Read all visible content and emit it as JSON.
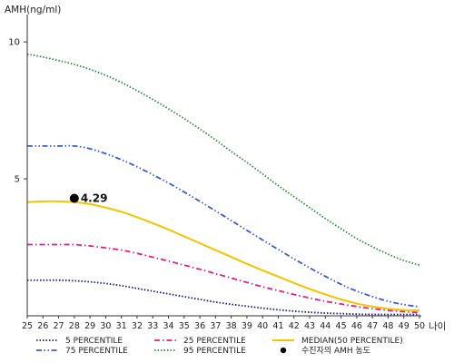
{
  "chart_data": {
    "type": "line",
    "ylabel": "AMH(ng/ml)",
    "xlabel": "나이",
    "x": [
      25,
      26,
      27,
      28,
      29,
      30,
      31,
      32,
      33,
      34,
      35,
      36,
      37,
      38,
      39,
      40,
      41,
      42,
      43,
      44,
      45,
      46,
      47,
      48,
      49,
      50
    ],
    "xlim": [
      25,
      50
    ],
    "ylim": [
      0,
      11
    ],
    "yticks": [
      5,
      10
    ],
    "grid": false,
    "legend_position": "bottom",
    "series": [
      {
        "name": "5 PERCENTILE",
        "color": "#1a1a80",
        "style": "dotted",
        "values": [
          1.3,
          1.3,
          1.3,
          1.28,
          1.24,
          1.18,
          1.1,
          1.0,
          0.9,
          0.8,
          0.7,
          0.6,
          0.5,
          0.42,
          0.35,
          0.28,
          0.22,
          0.17,
          0.13,
          0.1,
          0.08,
          0.06,
          0.05,
          0.05,
          0.05,
          0.05
        ]
      },
      {
        "name": "25 PERCENTILE",
        "color": "#e0208a",
        "style": "dashdot",
        "values": [
          2.6,
          2.6,
          2.6,
          2.6,
          2.55,
          2.48,
          2.4,
          2.28,
          2.14,
          2.0,
          1.85,
          1.7,
          1.54,
          1.38,
          1.22,
          1.06,
          0.92,
          0.78,
          0.65,
          0.53,
          0.43,
          0.34,
          0.26,
          0.2,
          0.15,
          0.12
        ]
      },
      {
        "name": "MEDIAN(50 PERCENTILE)",
        "color": "#f5c400",
        "style": "solid",
        "values": [
          4.15,
          4.18,
          4.18,
          4.15,
          4.08,
          3.95,
          3.8,
          3.6,
          3.38,
          3.15,
          2.9,
          2.65,
          2.4,
          2.15,
          1.9,
          1.66,
          1.43,
          1.2,
          0.98,
          0.78,
          0.6,
          0.45,
          0.34,
          0.26,
          0.21,
          0.2
        ]
      },
      {
        "name": "75 PERCENTILE",
        "color": "#3a5bd0",
        "style": "dashdotdot",
        "values": [
          6.2,
          6.2,
          6.2,
          6.2,
          6.1,
          5.92,
          5.7,
          5.44,
          5.15,
          4.85,
          4.52,
          4.18,
          3.83,
          3.48,
          3.12,
          2.77,
          2.42,
          2.08,
          1.75,
          1.44,
          1.15,
          0.9,
          0.7,
          0.53,
          0.41,
          0.33
        ]
      },
      {
        "name": "95 PERCENTILE",
        "color": "#2e8a3c",
        "style": "dotted",
        "values": [
          9.55,
          9.45,
          9.32,
          9.18,
          9.0,
          8.78,
          8.52,
          8.22,
          7.9,
          7.56,
          7.2,
          6.82,
          6.42,
          6.0,
          5.6,
          5.18,
          4.75,
          4.35,
          3.95,
          3.55,
          3.18,
          2.82,
          2.52,
          2.25,
          2.02,
          1.85
        ]
      }
    ],
    "highlight_point": {
      "name": "수진자의 AMH 농도",
      "x": 28,
      "y": 4.29,
      "label": "4.29",
      "color": "#000000"
    }
  }
}
